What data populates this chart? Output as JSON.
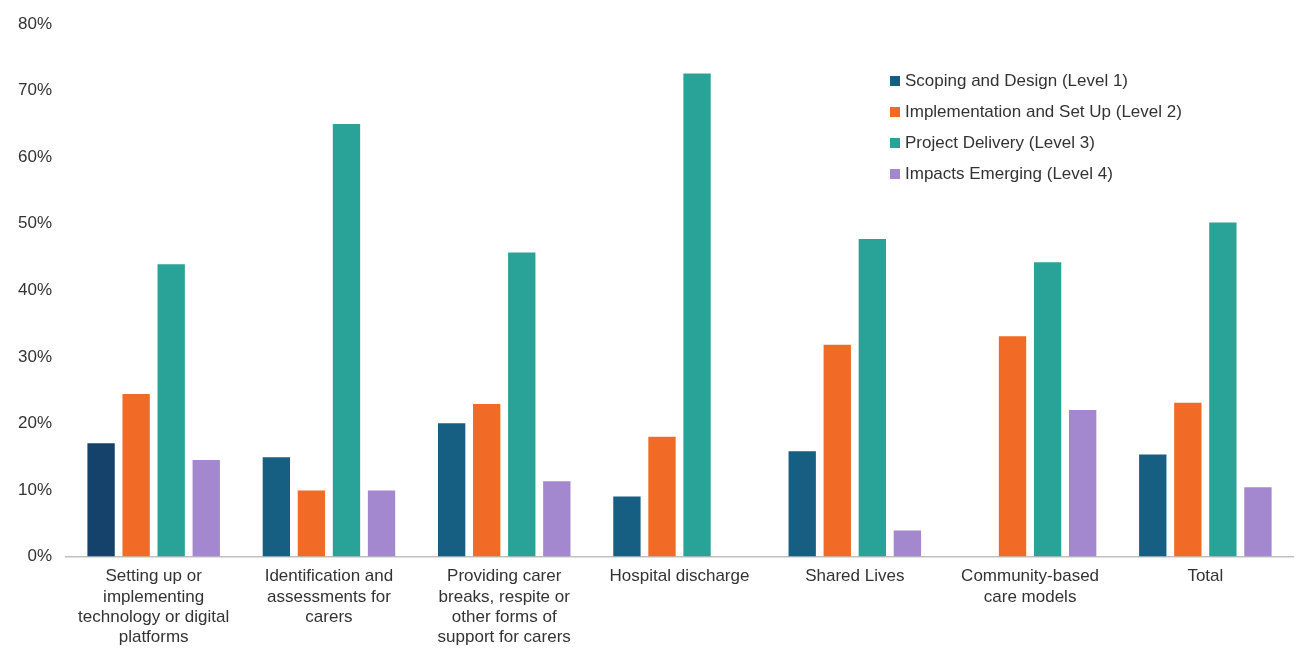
{
  "chart_data": {
    "type": "bar",
    "categories": [
      "Setting up or implementing technology or digital platforms",
      "Identification and assessments for carers",
      "Providing carer breaks, respite or other forms of support for carers",
      "Hospital discharge",
      "Shared Lives",
      "Community-based care models",
      "Total"
    ],
    "series": [
      {
        "name": "Scoping and Design (Level 1)",
        "color": "#175f82",
        "colors": [
          "#15426b",
          "#175f82",
          "#175f82",
          "#175f82",
          "#175f82",
          "#175f82",
          "#175f82"
        ],
        "values": [
          17.0,
          14.9,
          20.0,
          9.0,
          15.8,
          0,
          15.3
        ]
      },
      {
        "name": "Implementation and Set Up (Level 2)",
        "color": "#f26b26",
        "values": [
          24.4,
          9.9,
          22.9,
          18.0,
          31.8,
          33.1,
          23.1
        ]
      },
      {
        "name": "Project Delivery (Level 3)",
        "color": "#29a397",
        "values": [
          43.9,
          65.0,
          45.7,
          72.6,
          47.7,
          44.2,
          50.2
        ]
      },
      {
        "name": "Impacts Emerging (Level 4)",
        "color": "#a388d0",
        "values": [
          14.5,
          9.9,
          11.3,
          0,
          3.9,
          22.0,
          10.4
        ]
      }
    ],
    "ylim": [
      0,
      80
    ],
    "yticks": [
      {
        "value": 0,
        "label": "0%"
      },
      {
        "value": 10,
        "label": "10%"
      },
      {
        "value": 20,
        "label": "20%"
      },
      {
        "value": 30,
        "label": "30%"
      },
      {
        "value": 40,
        "label": "40%"
      },
      {
        "value": 50,
        "label": "50%"
      },
      {
        "value": 60,
        "label": "60%"
      },
      {
        "value": 70,
        "label": "70%"
      },
      {
        "value": 80,
        "label": "80%"
      }
    ],
    "grid": false,
    "legend": "top right"
  }
}
